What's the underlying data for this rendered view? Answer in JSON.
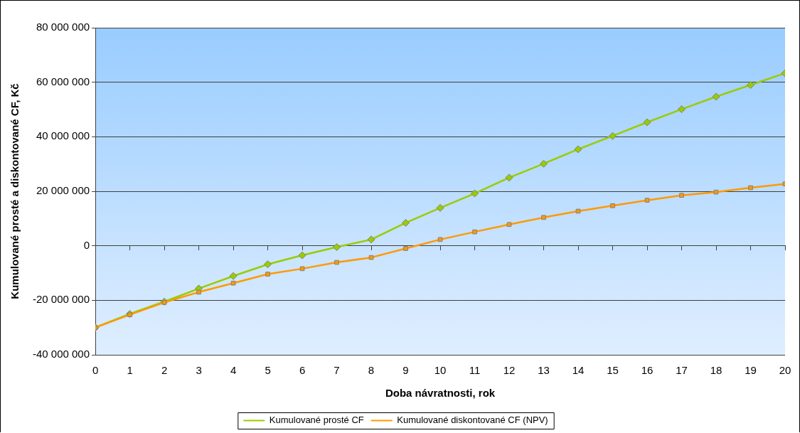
{
  "chart_data": {
    "type": "line",
    "xlabel": "Doba návratnosti, rok",
    "ylabel": "Kumulované prosté a diskontované CF, Kč",
    "x": [
      0,
      1,
      2,
      3,
      4,
      5,
      6,
      7,
      8,
      9,
      10,
      11,
      12,
      13,
      14,
      15,
      16,
      17,
      18,
      19,
      20
    ],
    "xlim": [
      0,
      20
    ],
    "xticks": [
      0,
      1,
      2,
      3,
      4,
      5,
      6,
      7,
      8,
      9,
      10,
      11,
      12,
      13,
      14,
      15,
      16,
      17,
      18,
      19,
      20
    ],
    "ylim": [
      -40000000,
      80000000
    ],
    "yticks": [
      -40000000,
      -20000000,
      0,
      20000000,
      40000000,
      60000000,
      80000000
    ],
    "grid": "y",
    "legend": "bottom",
    "series": [
      {
        "name": "Kumulované prosté CF",
        "color": "#99cc00",
        "marker": "diamond",
        "values": [
          -30000000,
          -25000000,
          -20500000,
          -15700000,
          -11100000,
          -6800000,
          -3500000,
          -500000,
          2300000,
          8400000,
          13900000,
          19200000,
          25000000,
          30100000,
          35400000,
          40300000,
          45300000,
          50100000,
          54700000,
          59000000,
          63300000
        ]
      },
      {
        "name": "Kumulované diskontované CF (NPV)",
        "color": "#ff9900",
        "marker": "square",
        "values": [
          -30000000,
          -25300000,
          -20800000,
          -17000000,
          -13700000,
          -10400000,
          -8400000,
          -6100000,
          -4300000,
          -1000000,
          2300000,
          5100000,
          7800000,
          10400000,
          12700000,
          14700000,
          16700000,
          18500000,
          19700000,
          21300000,
          22700000
        ]
      }
    ]
  }
}
